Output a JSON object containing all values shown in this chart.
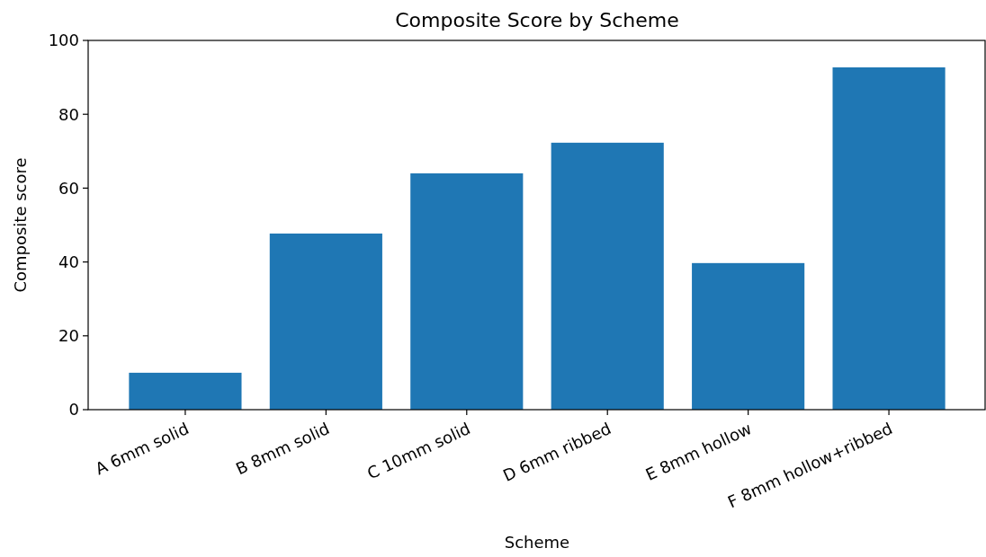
{
  "chart_data": {
    "type": "bar",
    "title": "Composite Score by Scheme",
    "xlabel": "Scheme",
    "ylabel": "Composite score",
    "categories": [
      "A 6mm solid",
      "B 8mm solid",
      "C 10mm solid",
      "D 6mm ribbed",
      "E 8mm hollow",
      "F 8mm hollow+ribbed"
    ],
    "values": [
      10,
      47.7,
      64,
      72.3,
      39.7,
      92.7
    ],
    "color": "#1f77b4",
    "ylim": [
      0,
      100
    ],
    "yticks": [
      0,
      20,
      40,
      60,
      80,
      100
    ]
  }
}
